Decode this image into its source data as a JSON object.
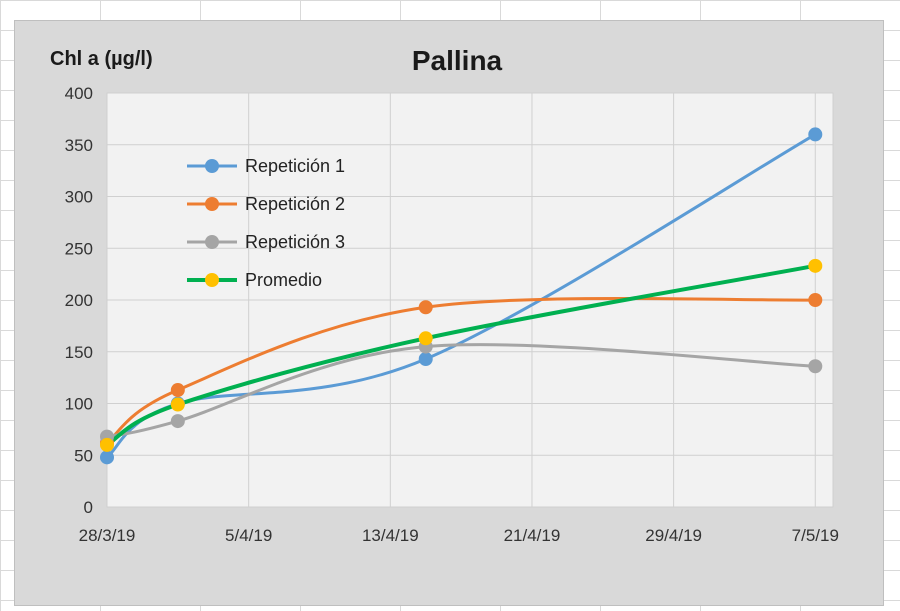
{
  "chart_data": {
    "type": "line",
    "title": "Pallina",
    "ylabel": "Chl a (µg/l)",
    "xlabel": "",
    "ylim": [
      0,
      400
    ],
    "yticks": [
      0,
      50,
      100,
      150,
      200,
      250,
      300,
      350,
      400
    ],
    "xlim": [
      "2019-03-28",
      "2019-05-08"
    ],
    "xticks": [
      {
        "date": "2019-03-28",
        "label": "28/3/19"
      },
      {
        "date": "2019-04-05",
        "label": "5/4/19"
      },
      {
        "date": "2019-04-13",
        "label": "13/4/19"
      },
      {
        "date": "2019-04-21",
        "label": "21/4/19"
      },
      {
        "date": "2019-04-29",
        "label": "29/4/19"
      },
      {
        "date": "2019-05-07",
        "label": "7/5/19"
      }
    ],
    "x": [
      "2019-03-28",
      "2019-04-01",
      "2019-04-15",
      "2019-05-07"
    ],
    "grid": true,
    "legend_position": "top-left",
    "series": [
      {
        "name": "Repetición 1",
        "color": "#5b9bd5",
        "values": [
          48,
          100,
          143,
          360
        ]
      },
      {
        "name": "Repetición 2",
        "color": "#ed7d31",
        "values": [
          62,
          113,
          193,
          200
        ]
      },
      {
        "name": "Repetición 3",
        "color": "#a5a5a5",
        "values": [
          68,
          83,
          155,
          136
        ]
      },
      {
        "name": "Promedio",
        "color": "#00b050",
        "marker_color": "#ffc000",
        "values": [
          60,
          99,
          163,
          233
        ]
      }
    ]
  }
}
